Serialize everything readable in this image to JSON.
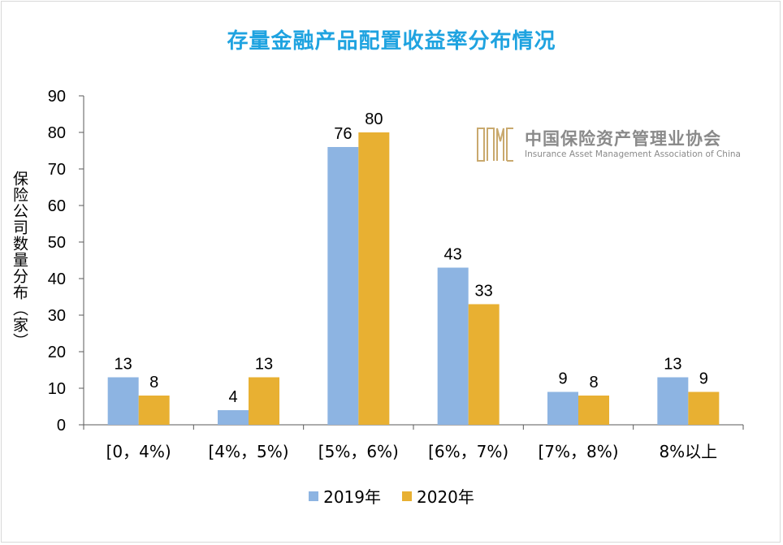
{
  "chart_data": {
    "type": "bar",
    "title": "存量金融产品配置收益率分布情况",
    "xlabel": "",
    "ylabel": "保险公司数量分布（家）",
    "ylim": [
      0,
      90
    ],
    "yticks": [
      0,
      10,
      20,
      30,
      40,
      50,
      60,
      70,
      80,
      90
    ],
    "categories": [
      "[0，4%)",
      "[4%，5%)",
      "[5%，6%)",
      "[6%，7%)",
      "[7%，8%)",
      "8%以上"
    ],
    "series": [
      {
        "name": "2019年",
        "color": "#8db4e2",
        "values": [
          13,
          4,
          76,
          43,
          9,
          13
        ]
      },
      {
        "name": "2020年",
        "color": "#e8b032",
        "values": [
          8,
          13,
          80,
          33,
          8,
          9
        ]
      }
    ],
    "legend_position": "bottom",
    "grid": false
  },
  "watermark": {
    "mark": "IAMAC",
    "name_cn": "中国保险资产管理业协会",
    "name_en": "Insurance Asset Management Association of China"
  }
}
